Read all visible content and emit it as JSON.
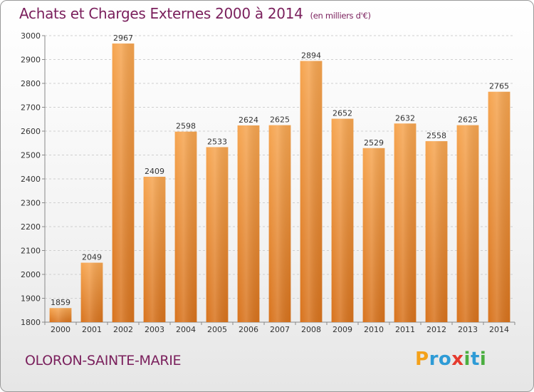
{
  "chart_data": {
    "type": "bar",
    "title": "Achats et Charges Externes 2000 à 2014",
    "subtitle": "(en milliers d'€)",
    "categories": [
      "2000",
      "2001",
      "2002",
      "2003",
      "2004",
      "2005",
      "2006",
      "2007",
      "2008",
      "2009",
      "2010",
      "2011",
      "2012",
      "2013",
      "2014"
    ],
    "values": [
      1859,
      2049,
      2967,
      2409,
      2598,
      2533,
      2624,
      2625,
      2894,
      2652,
      2529,
      2632,
      2558,
      2625,
      2765
    ],
    "ylim": [
      1800,
      3000
    ],
    "yticks": [
      1800,
      1900,
      2000,
      2100,
      2200,
      2300,
      2400,
      2500,
      2600,
      2700,
      2800,
      2900,
      3000
    ],
    "grid": true,
    "bar_color": "#e9822a"
  },
  "footer": {
    "city": "OLORON-SAINTE-MARIE",
    "logo_letters": [
      "P",
      "r",
      "o",
      "x",
      "i",
      "t",
      "i"
    ],
    "logo_colors": [
      "#f4a11a",
      "#2e9bd6",
      "#2e9bd6",
      "#e53a2e",
      "#4aae3f",
      "#2e9bd6",
      "#4aae3f"
    ]
  }
}
